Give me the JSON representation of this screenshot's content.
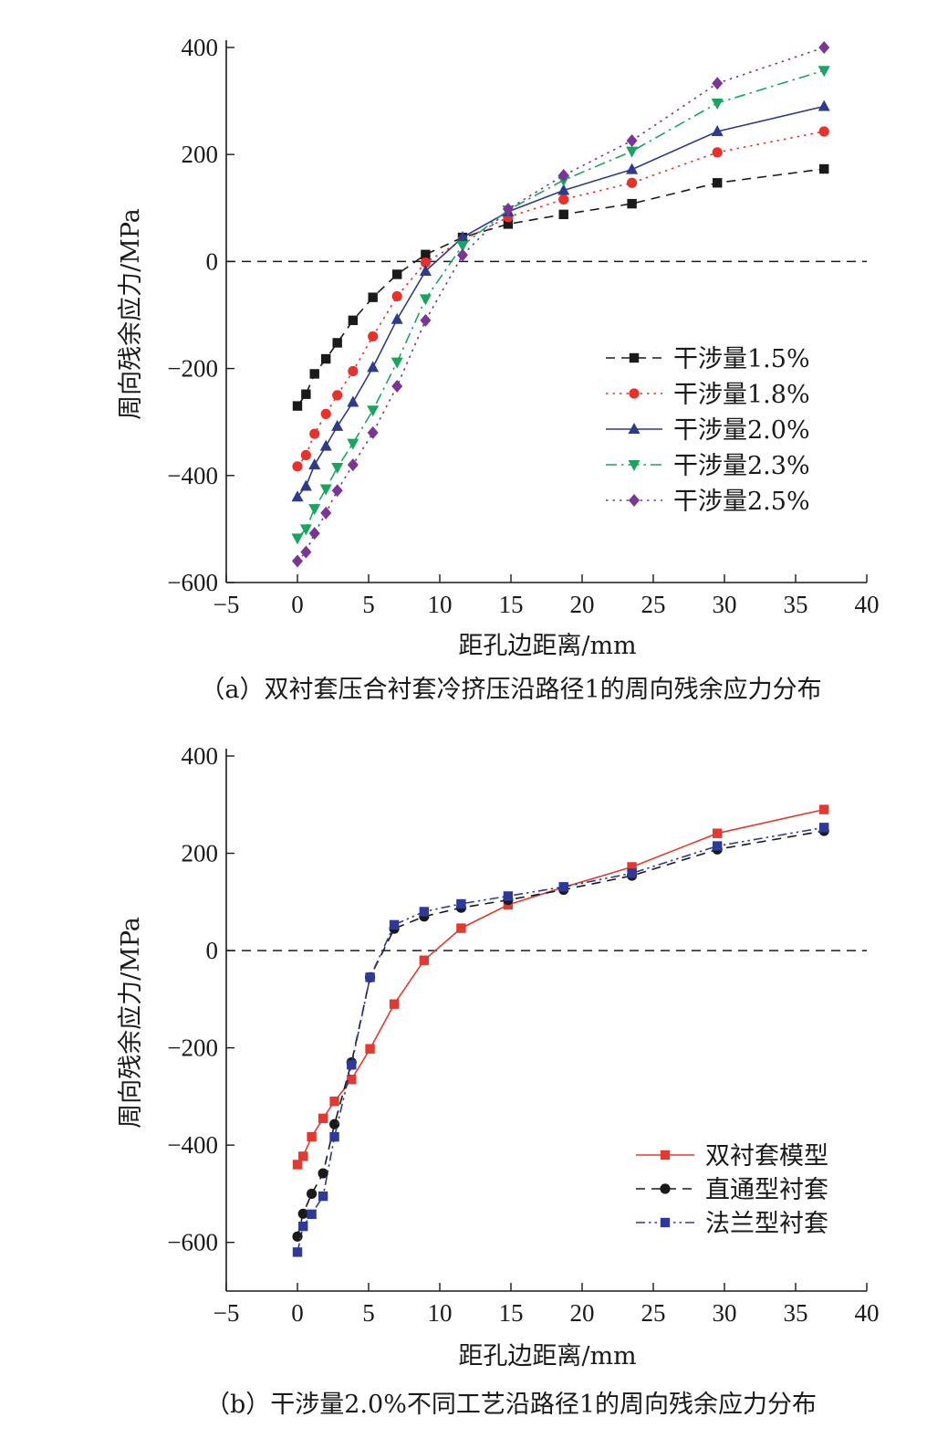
{
  "chart_data": [
    {
      "type": "line",
      "caption": "（a）双衬套压合衬套冷挤压沿路径1的周向残余应力分布",
      "xlabel": "距孔边距离/mm",
      "ylabel": "周向残余应力/MPa",
      "xlim": [
        -5,
        40
      ],
      "ylim": [
        -600,
        400
      ],
      "xticks": [
        -5,
        0,
        5,
        10,
        15,
        20,
        25,
        30,
        35,
        40
      ],
      "yticks": [
        -600,
        -400,
        -200,
        0,
        200,
        400
      ],
      "xtick_labels": [
        "−5",
        "0",
        "5",
        "10",
        "15",
        "20",
        "25",
        "30",
        "35",
        "40"
      ],
      "ytick_labels": [
        "−600",
        "−400",
        "−200",
        "0",
        "200",
        "400"
      ],
      "zero_line": true,
      "grid": false,
      "legend": "middle-right",
      "series": [
        {
          "name": "干涉量1.5%",
          "color": "#1a1a1a",
          "dash": "dash",
          "marker": "square",
          "x": [
            0,
            0.6,
            1.2,
            2,
            2.8,
            3.9,
            5.3,
            7,
            9,
            11.6,
            14.8,
            18.7,
            23.5,
            29.5,
            37
          ],
          "y": [
            -270,
            -248,
            -210,
            -182,
            -152,
            -110,
            -67,
            -24,
            13,
            45,
            70,
            88,
            108,
            147,
            173
          ]
        },
        {
          "name": "干涉量1.8%",
          "color": "#e8312a",
          "dash": "dot",
          "marker": "circle",
          "x": [
            0,
            0.6,
            1.2,
            2,
            2.8,
            3.9,
            5.3,
            7,
            9,
            11.6,
            14.8,
            18.7,
            23.5,
            29.5,
            37
          ],
          "y": [
            -383,
            -362,
            -322,
            -285,
            -250,
            -205,
            -140,
            -65,
            -2,
            40,
            83,
            116,
            147,
            204,
            243
          ]
        },
        {
          "name": "干涉量2.0%",
          "color": "#2e3a8c",
          "dash": "solid",
          "marker": "triangle-up",
          "x": [
            0,
            0.6,
            1.2,
            2,
            2.8,
            3.9,
            5.3,
            7,
            9,
            11.6,
            14.8,
            18.7,
            23.5,
            29.5,
            37
          ],
          "y": [
            -440,
            -420,
            -380,
            -345,
            -308,
            -263,
            -198,
            -108,
            -18,
            45,
            93,
            133,
            172,
            243,
            290
          ]
        },
        {
          "name": "干涉量2.3%",
          "color": "#19a560",
          "dash": "dashdot",
          "marker": "triangle-down",
          "x": [
            0,
            0.6,
            1.2,
            2,
            2.8,
            3.9,
            5.3,
            7,
            9,
            11.6,
            14.8,
            18.7,
            23.5,
            29.5,
            37
          ],
          "y": [
            -517,
            -500,
            -462,
            -425,
            -385,
            -340,
            -278,
            -188,
            -70,
            30,
            96,
            152,
            206,
            296,
            357
          ]
        },
        {
          "name": "干涉量2.5%",
          "color": "#7a3596",
          "dash": "dot",
          "marker": "diamond",
          "x": [
            0,
            0.6,
            1.2,
            2,
            2.8,
            3.9,
            5.3,
            7,
            9,
            11.6,
            14.8,
            18.7,
            23.5,
            29.5,
            37
          ],
          "y": [
            -560,
            -543,
            -508,
            -470,
            -428,
            -380,
            -320,
            -233,
            -110,
            12,
            98,
            161,
            226,
            333,
            400
          ]
        }
      ]
    },
    {
      "type": "line",
      "caption": "（b）干涉量2.0%不同工艺沿路径1的周向残余应力分布",
      "xlabel": "距孔边距离/mm",
      "ylabel": "周向残余应力/MPa",
      "xlim": [
        -5,
        40
      ],
      "ylim": [
        -700,
        400
      ],
      "xticks": [
        -5,
        0,
        5,
        10,
        15,
        20,
        25,
        30,
        35,
        40
      ],
      "yticks": [
        -600,
        -400,
        -200,
        0,
        200,
        400
      ],
      "xtick_labels": [
        "−5",
        "0",
        "5",
        "10",
        "15",
        "20",
        "25",
        "30",
        "35",
        "40"
      ],
      "ytick_labels": [
        "−600",
        "−400",
        "−200",
        "0",
        "200",
        "400"
      ],
      "zero_line": true,
      "grid": false,
      "legend": "bottom-right",
      "series": [
        {
          "name": "双衬套模型",
          "color": "#e23a2f",
          "dash": "solid",
          "marker": "square",
          "x": [
            0,
            0.4,
            1,
            1.8,
            2.6,
            3.8,
            5.1,
            6.8,
            8.9,
            11.5,
            14.8,
            18.7,
            23.5,
            29.5,
            37
          ],
          "y": [
            -440,
            -423,
            -383,
            -345,
            -310,
            -265,
            -202,
            -110,
            -20,
            46,
            94,
            130,
            172,
            241,
            290
          ]
        },
        {
          "name": "直通型衬套",
          "color": "#1a1a1a",
          "dash": "dash",
          "marker": "circle",
          "x": [
            0,
            0.4,
            1,
            1.8,
            2.6,
            3.8,
            5.1,
            6.8,
            8.9,
            11.5,
            14.8,
            18.7,
            23.5,
            29.5,
            37
          ],
          "y": [
            -588,
            -541,
            -500,
            -458,
            -357,
            -230,
            -55,
            45,
            70,
            88,
            104,
            125,
            154,
            208,
            246
          ]
        },
        {
          "name": "法兰型衬套",
          "color": "#2e3a9a",
          "dash": "dashdotdot",
          "marker": "square",
          "x": [
            0,
            0.4,
            1,
            1.8,
            2.6,
            3.8,
            5.1,
            6.8,
            8.9,
            11.5,
            14.8,
            18.7,
            23.5,
            29.5,
            37
          ],
          "y": [
            -620,
            -567,
            -542,
            -505,
            -383,
            -235,
            -55,
            53,
            80,
            96,
            112,
            131,
            159,
            215,
            253
          ]
        }
      ]
    }
  ]
}
